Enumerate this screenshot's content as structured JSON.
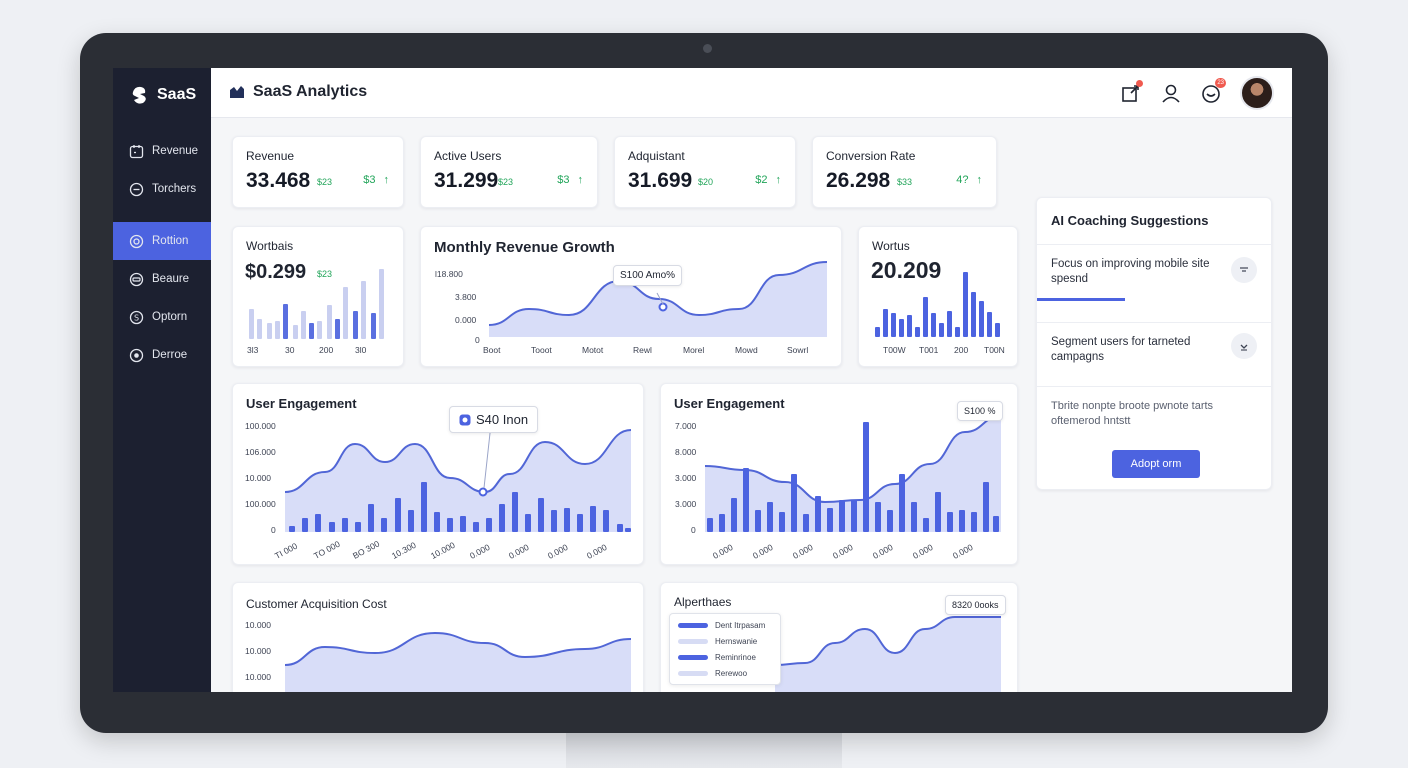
{
  "sidebar": {
    "brand": "SaaS",
    "items": [
      {
        "label": "Revenue",
        "icon": "calendar-icon"
      },
      {
        "label": "Torchers",
        "icon": "circle-minus-icon"
      },
      {
        "label": "Rottion",
        "icon": "target-icon"
      },
      {
        "label": "Beaure",
        "icon": "minus-circle-icon"
      },
      {
        "label": "Optorn",
        "icon": "dollar-icon"
      },
      {
        "label": "Derroe",
        "icon": "settings-icon"
      }
    ],
    "active_index": 2
  },
  "header": {
    "title": "SaaS Analytics",
    "notification_badge": "",
    "chat_badge": "23"
  },
  "kpis": [
    {
      "label": "Revenue",
      "value": "33.468",
      "small": "$23",
      "delta": "$3"
    },
    {
      "label": "Active Users",
      "value": "31.299",
      "small": "$23",
      "delta": "$3"
    },
    {
      "label": "Adquistant",
      "value": "31.699",
      "small": "$20",
      "delta": "$2"
    },
    {
      "label": "Conversion Rate",
      "value": "26.298",
      "small": "$33",
      "delta": "4?"
    }
  ],
  "card_wortbais": {
    "title": "Wortbais",
    "value": "$0.299",
    "small": "$23",
    "x_labels": [
      "3l3",
      "30",
      "200",
      "3l0"
    ]
  },
  "monthly_revenue": {
    "title": "Monthly Revenue Growth",
    "tooltip": "S100 Amo%",
    "y_labels": [
      "l18.800",
      "3.800",
      "0.000",
      "0"
    ],
    "x_labels": [
      "Boot",
      "Tooot",
      "Motot",
      "Rewl",
      "Morel",
      "Mowd",
      "Sowrl"
    ]
  },
  "card_wortus": {
    "title": "Wortus",
    "value": "20.209",
    "x_labels": [
      "T00W",
      "T001",
      "200",
      "T00N"
    ]
  },
  "engagement_1": {
    "title": "User Engagement",
    "tooltip": "S40 Inon",
    "y_labels": [
      "100.000",
      "106.000",
      "10.000",
      "100.000",
      "0"
    ],
    "x_labels": [
      "TI 000",
      "TO 000",
      "BO 300",
      "10.300",
      "10.000",
      "0.000",
      "0.000",
      "0.000",
      "0.000"
    ]
  },
  "engagement_2": {
    "title": "User Engagement",
    "tooltip": "S100 %",
    "y_labels": [
      "7.000",
      "8.000",
      "3.000",
      "3.000",
      "0"
    ],
    "x_labels": [
      "0.000",
      "0.000",
      "0.000",
      "0.000",
      "0.000",
      "0.000",
      "0.000"
    ]
  },
  "cac": {
    "title": "Customer Acquisition Cost",
    "y_labels": [
      "10.000",
      "10.000",
      "10.000"
    ]
  },
  "alperthaes": {
    "title": "Alperthaes",
    "tooltip": "8320 0ooks",
    "legend": [
      "Dent Itrpasam",
      "Hernswanie",
      "Reminrinoe",
      "Rerewoo"
    ]
  },
  "coaching": {
    "title": "AI Coaching Suggestions",
    "items": [
      "Focus on improving mobile site spesnd",
      "Segment users for tarneted campagns",
      "Tbrite nonpte broote pwnote tarts oftemerod hntstt"
    ],
    "button": "Adopt orm"
  },
  "colors": {
    "accent": "#4c63e0",
    "sidebar": "#1c2030",
    "positive": "#22a55a"
  }
}
